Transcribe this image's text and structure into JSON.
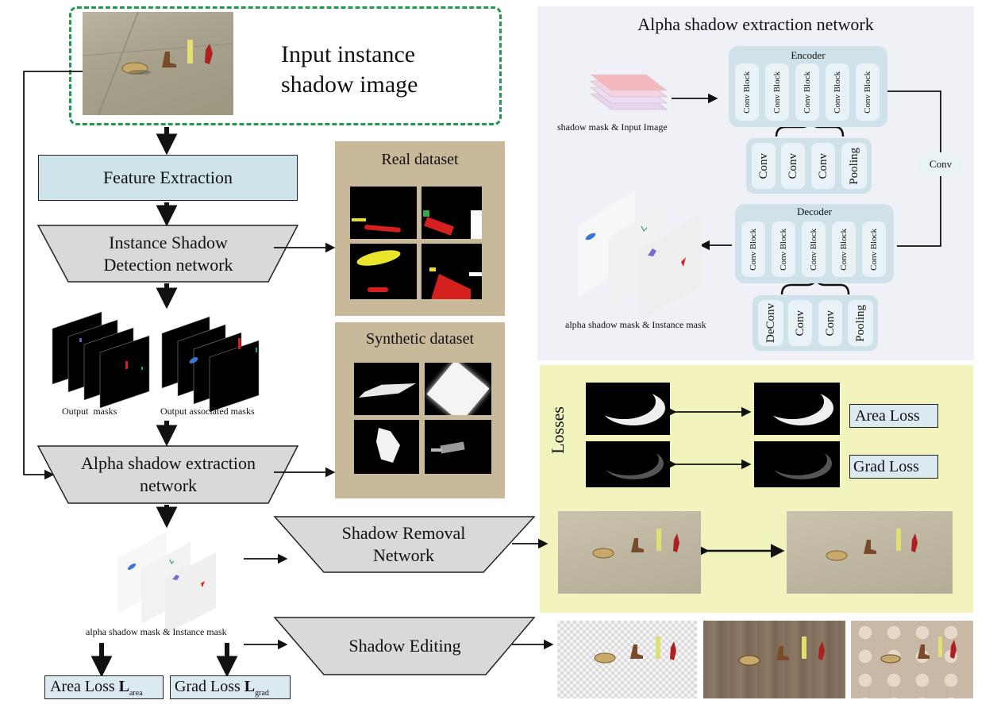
{
  "input": {
    "title_line1": "Input instance",
    "title_line2": "shadow image"
  },
  "pipeline": {
    "feature_extraction": "Feature Extraction",
    "isd_line1": "Instance Shadow",
    "isd_line2": "Detection network",
    "output_masks": "Output  masks",
    "output_assoc_masks": "Output associated masks",
    "alpha_line1": "Alpha shadow extraction",
    "alpha_line2": "network",
    "alpha_mask_caption": "alpha shadow mask & Instance mask",
    "removal_line1": "Shadow Removal",
    "removal_line2": "Network",
    "editing": "Shadow Editing",
    "area_loss": "Area Loss",
    "area_loss_sub": "L",
    "area_loss_subscript": "area",
    "grad_loss": "Grad Loss",
    "grad_loss_sub": "L",
    "grad_loss_subscript": "grad"
  },
  "datasets": {
    "real": "Real dataset",
    "synthetic": "Synthetic dataset"
  },
  "network": {
    "title": "Alpha shadow extraction network",
    "encoder": "Encoder",
    "decoder": "Decoder",
    "conv_block": "Conv Block",
    "conv": "Conv",
    "deconv": "DeConv",
    "pooling": "Pooling",
    "mid_conv": "Conv",
    "input_caption": "shadow mask & Input Image",
    "output_caption": "alpha shadow mask & Instance mask"
  },
  "losses": {
    "title": "Losses",
    "area": "Area Loss",
    "grad": "Grad Loss"
  },
  "colors": {
    "feature_box": "#cfe3ea",
    "trapezoid": "#d9d9d9",
    "dataset_bg": "#c8b99a",
    "network_bg": "#f0f1f6",
    "block_bg": "#cfe2ea",
    "losses_bg": "#f2f3bd",
    "dashed_border": "#1f9a4a"
  }
}
